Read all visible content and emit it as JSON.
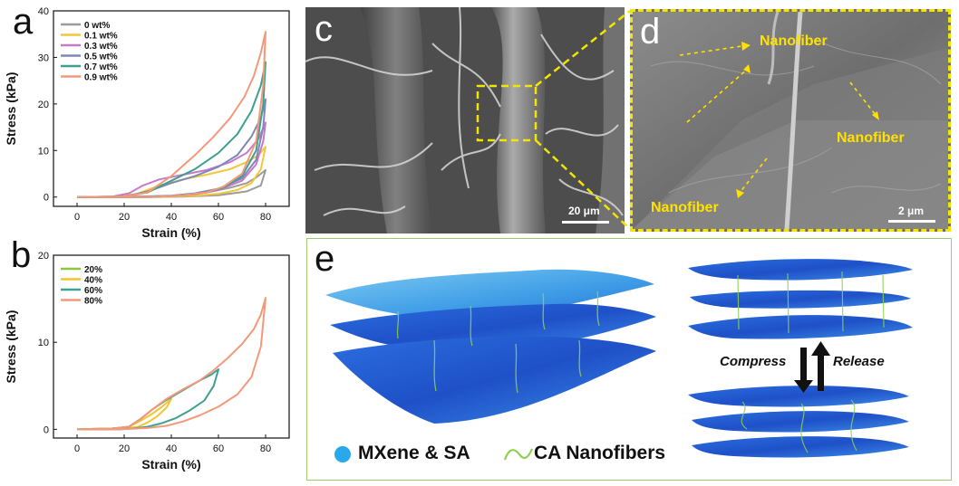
{
  "panels": {
    "a": "a",
    "b": "b",
    "c": "c",
    "d": "d",
    "e": "e"
  },
  "chart_data": [
    {
      "type": "line",
      "panel": "a",
      "xlabel": "Strain (%)",
      "ylabel": "Stress (kPa)",
      "xlim": [
        -10,
        90
      ],
      "ylim": [
        -2,
        40
      ],
      "xticks": [
        "0",
        "20",
        "40",
        "60",
        "80"
      ],
      "yticks": [
        "0",
        "10",
        "20",
        "30",
        "40"
      ],
      "legend_position": "top-left",
      "series": [
        {
          "name": "0 wt%",
          "color": "#9b9b9b",
          "x": [
            0,
            20,
            40,
            55,
            65,
            72,
            76,
            78,
            79,
            80,
            78,
            72,
            60,
            45,
            30,
            20,
            10,
            0
          ],
          "y": [
            0,
            0.05,
            0.3,
            1.0,
            2.0,
            3.0,
            4.2,
            5.0,
            5.4,
            5.8,
            2.5,
            1.2,
            0.4,
            0.1,
            0,
            0,
            0,
            0
          ]
        },
        {
          "name": "0.1 wt%",
          "color": "#f4c63a",
          "x": [
            0,
            15,
            25,
            35,
            45,
            55,
            65,
            72,
            77,
            80,
            78,
            74,
            68,
            60,
            50,
            40,
            30,
            20,
            10,
            0
          ],
          "y": [
            0,
            0.1,
            0.6,
            2.5,
            3.8,
            4.8,
            6.0,
            7.5,
            9.0,
            10.8,
            6.0,
            3.0,
            1.5,
            0.7,
            0.3,
            0.1,
            0,
            0,
            0,
            0
          ]
        },
        {
          "name": "0.3 wt%",
          "color": "#c77ac8",
          "x": [
            0,
            15,
            22,
            28,
            35,
            45,
            55,
            65,
            72,
            77,
            80,
            79,
            76,
            70,
            60,
            50,
            40,
            30,
            20,
            10,
            0
          ],
          "y": [
            0,
            0.1,
            0.8,
            2.5,
            3.8,
            4.8,
            5.8,
            7.5,
            9.5,
            12.5,
            16.0,
            12.0,
            7.0,
            3.5,
            1.5,
            0.6,
            0.2,
            0,
            0,
            0,
            0
          ]
        },
        {
          "name": "0.5 wt%",
          "color": "#7f87b8",
          "x": [
            0,
            20,
            30,
            40,
            50,
            60,
            68,
            74,
            78,
            80,
            79,
            76,
            70,
            60,
            50,
            40,
            30,
            20,
            10,
            0
          ],
          "y": [
            0,
            0.1,
            1.2,
            3.0,
            4.5,
            6.5,
            9.0,
            13.0,
            17.0,
            21.0,
            15.0,
            8.0,
            4.0,
            1.8,
            0.8,
            0.3,
            0.1,
            0,
            0,
            0
          ]
        },
        {
          "name": "0.7 wt%",
          "color": "#3f9f8f",
          "x": [
            0,
            20,
            30,
            40,
            50,
            60,
            68,
            74,
            78,
            80,
            79,
            76,
            70,
            62,
            55,
            45,
            35,
            25,
            15,
            0
          ],
          "y": [
            0,
            0.1,
            1.0,
            3.5,
            6.0,
            9.5,
            13.5,
            18.5,
            24.0,
            29.0,
            20.0,
            10.0,
            4.5,
            2.0,
            1.0,
            0.4,
            0.1,
            0,
            0,
            0
          ]
        },
        {
          "name": "0.9 wt%",
          "color": "#f3997a",
          "x": [
            0,
            20,
            30,
            40,
            50,
            58,
            65,
            71,
            75,
            78,
            80,
            79,
            76,
            70,
            62,
            55,
            45,
            35,
            25,
            15,
            0
          ],
          "y": [
            0,
            0.1,
            1.0,
            4.5,
            9.0,
            13.0,
            17.0,
            21.5,
            26.0,
            31.0,
            35.5,
            24.0,
            12.0,
            5.0,
            2.2,
            1.0,
            0.4,
            0.1,
            0,
            0,
            0
          ]
        }
      ]
    },
    {
      "type": "line",
      "panel": "b",
      "xlabel": "Strain (%)",
      "ylabel": "Stress (kPa)",
      "xlim": [
        -10,
        90
      ],
      "ylim": [
        -1,
        20
      ],
      "xticks": [
        "0",
        "20",
        "40",
        "60",
        "80"
      ],
      "yticks": [
        "0",
        "10",
        "20"
      ],
      "legend_position": "top-left",
      "series": [
        {
          "name": "20%",
          "color": "#8dc63f",
          "x": [
            0,
            10,
            16,
            20,
            18,
            12,
            5,
            0
          ],
          "y": [
            0,
            0.02,
            0.08,
            0.2,
            0.1,
            0.03,
            0,
            0
          ]
        },
        {
          "name": "40%",
          "color": "#f4c431",
          "x": [
            0,
            15,
            22,
            27,
            32,
            36,
            40,
            38,
            34,
            30,
            26,
            20,
            10,
            0
          ],
          "y": [
            0,
            0.1,
            0.3,
            1.0,
            1.8,
            2.6,
            3.5,
            2.5,
            1.5,
            0.8,
            0.3,
            0.1,
            0,
            0
          ]
        },
        {
          "name": "60%",
          "color": "#3fa08f",
          "x": [
            0,
            15,
            22,
            27,
            32,
            38,
            45,
            52,
            57,
            60,
            58,
            54,
            48,
            42,
            36,
            30,
            24,
            18,
            10,
            0
          ],
          "y": [
            0,
            0.1,
            0.3,
            1.2,
            2.3,
            3.4,
            4.5,
            5.6,
            6.3,
            6.9,
            5.0,
            3.3,
            2.2,
            1.3,
            0.7,
            0.3,
            0.1,
            0,
            0,
            0
          ]
        },
        {
          "name": "80%",
          "color": "#f3997a",
          "x": [
            0,
            15,
            22,
            27,
            32,
            38,
            45,
            52,
            58,
            64,
            70,
            75,
            78,
            80,
            78,
            74,
            68,
            60,
            52,
            45,
            38,
            30,
            22,
            15,
            0
          ],
          "y": [
            0,
            0.1,
            0.3,
            1.2,
            2.3,
            3.5,
            4.6,
            5.6,
            6.8,
            8.2,
            9.8,
            11.5,
            13.2,
            15.1,
            9.5,
            6.0,
            4.0,
            2.6,
            1.6,
            0.9,
            0.4,
            0.15,
            0.05,
            0,
            0
          ]
        }
      ]
    }
  ],
  "sem_c": {
    "scalebar": "20 μm"
  },
  "sem_d": {
    "scalebar": "2 μm",
    "labels": [
      "Nanofiber",
      "Nanofiber",
      "Nanofiber"
    ]
  },
  "panel_e": {
    "legend_mxene": "MXene & SA",
    "legend_ca": "CA Nanofibers",
    "compress": "Compress",
    "release": "Release"
  },
  "colors": {
    "dashed_highlight": "#f2e500",
    "nanofiber_label": "#ffe100",
    "sheet_blue": "#1f5fd6",
    "sheet_light": "#4eb2ee",
    "fiber_green": "#8fd14f",
    "panel_e_border": "#9ccc68"
  }
}
